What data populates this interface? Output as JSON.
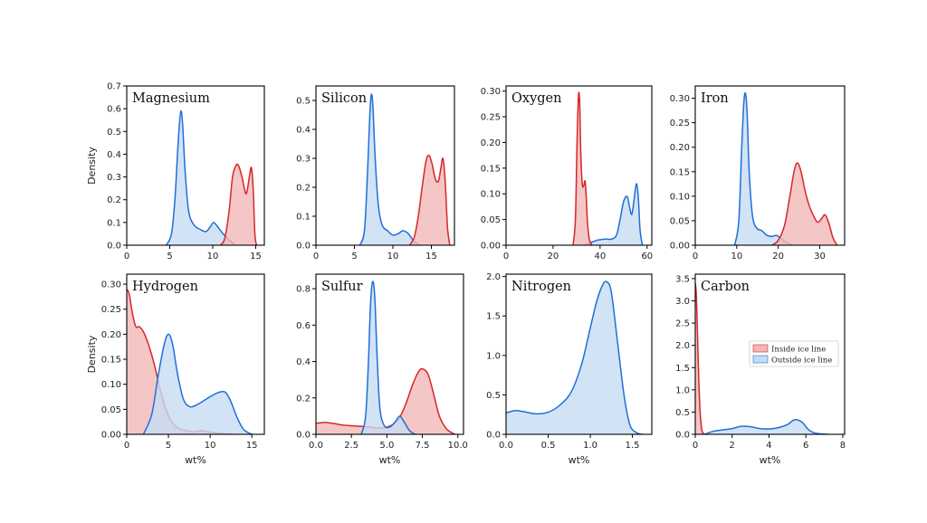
{
  "figure": {
    "legend": {
      "placement": "inside Carbon panel, center-right",
      "entries": [
        {
          "label": "Inside ice line",
          "color": "#d62728",
          "fill": "#f1b8b8"
        },
        {
          "label": "Outside ice line",
          "color": "#1f6fd6",
          "fill": "#c7dcf4"
        }
      ]
    },
    "colors": {
      "inside_line": "#d62728",
      "inside_fill": "#f1b8b8",
      "outside_line": "#1f6fd6",
      "outside_fill": "#c7dcf4",
      "axes": "#000000"
    }
  },
  "chart_data": [
    {
      "type": "area",
      "title": "Magnesium",
      "xlabel": "",
      "ylabel": "Density",
      "xlim": [
        0,
        16
      ],
      "ylim": [
        0,
        0.7
      ],
      "xticks": [
        0,
        5,
        10,
        15
      ],
      "xtick_labels": [
        "0",
        "5",
        "10",
        "15"
      ],
      "yticks": [
        0,
        0.1,
        0.2,
        0.3,
        0.4,
        0.5,
        0.6,
        0.7
      ],
      "ytick_labels": [
        "0.0",
        "0.1",
        "0.2",
        "0.3",
        "0.4",
        "0.5",
        "0.6",
        "0.7"
      ],
      "series": [
        {
          "name": "Outside ice line",
          "x": [
            4.6,
            5.2,
            5.6,
            5.9,
            6.1,
            6.3,
            6.5,
            6.8,
            7.2,
            7.8,
            8.5,
            9.2,
            9.7,
            10.1,
            10.6,
            11.2,
            12.0,
            12.6
          ],
          "y": [
            0.0,
            0.05,
            0.2,
            0.4,
            0.52,
            0.59,
            0.53,
            0.32,
            0.15,
            0.09,
            0.07,
            0.06,
            0.08,
            0.1,
            0.08,
            0.05,
            0.02,
            0.0
          ]
        },
        {
          "name": "Inside ice line",
          "x": [
            10.9,
            11.4,
            11.9,
            12.3,
            12.7,
            13.0,
            13.4,
            13.8,
            14.0,
            14.3,
            14.5,
            14.7,
            14.9,
            15.1
          ],
          "y": [
            0.0,
            0.03,
            0.15,
            0.3,
            0.35,
            0.35,
            0.3,
            0.23,
            0.24,
            0.31,
            0.34,
            0.25,
            0.05,
            0.0
          ]
        }
      ]
    },
    {
      "type": "area",
      "title": "Silicon",
      "xlabel": "",
      "ylabel": "",
      "xlim": [
        0,
        18
      ],
      "ylim": [
        0,
        0.55
      ],
      "xticks": [
        0,
        5,
        10,
        15
      ],
      "xtick_labels": [
        "0",
        "5",
        "10",
        "15"
      ],
      "yticks": [
        0,
        0.1,
        0.2,
        0.3,
        0.4,
        0.5
      ],
      "ytick_labels": [
        "0.0",
        "0.1",
        "0.2",
        "0.3",
        "0.4",
        "0.5"
      ],
      "series": [
        {
          "name": "Outside ice line",
          "x": [
            5.7,
            6.3,
            6.7,
            7.0,
            7.2,
            7.4,
            7.7,
            8.1,
            8.6,
            9.3,
            10.0,
            10.7,
            11.3,
            12.0,
            12.7,
            13.5
          ],
          "y": [
            0.0,
            0.05,
            0.25,
            0.45,
            0.52,
            0.48,
            0.3,
            0.14,
            0.07,
            0.05,
            0.035,
            0.04,
            0.05,
            0.04,
            0.015,
            0.0
          ]
        },
        {
          "name": "Inside ice line",
          "x": [
            12.2,
            12.8,
            13.3,
            13.8,
            14.3,
            14.7,
            15.1,
            15.5,
            15.9,
            16.2,
            16.5,
            16.8,
            17.1,
            17.4
          ],
          "y": [
            0.0,
            0.03,
            0.1,
            0.2,
            0.29,
            0.31,
            0.28,
            0.23,
            0.22,
            0.26,
            0.3,
            0.22,
            0.06,
            0.0
          ]
        }
      ]
    },
    {
      "type": "area",
      "title": "Oxygen",
      "xlabel": "",
      "ylabel": "",
      "xlim": [
        0,
        62
      ],
      "ylim": [
        0,
        0.31
      ],
      "xticks": [
        0,
        20,
        40,
        60
      ],
      "xtick_labels": [
        "0",
        "20",
        "40",
        "60"
      ],
      "yticks": [
        0,
        0.05,
        0.1,
        0.15,
        0.2,
        0.25,
        0.3
      ],
      "ytick_labels": [
        "0.00",
        "0.05",
        "0.10",
        "0.15",
        "0.20",
        "0.25",
        "0.30"
      ],
      "series": [
        {
          "name": "Outside ice line",
          "x": [
            33,
            36,
            39,
            42,
            45,
            47,
            48.5,
            50,
            51.5,
            52.5,
            53.5,
            54.5,
            55.5,
            56.3,
            57,
            58
          ],
          "y": [
            0.0,
            0.005,
            0.01,
            0.012,
            0.012,
            0.02,
            0.05,
            0.085,
            0.095,
            0.075,
            0.06,
            0.09,
            0.12,
            0.09,
            0.03,
            0.0
          ]
        },
        {
          "name": "Inside ice line",
          "x": [
            28.5,
            29.5,
            30.2,
            30.8,
            31.3,
            31.8,
            32.4,
            33.0,
            33.6,
            34.1,
            34.7,
            35.5,
            36.5
          ],
          "y": [
            0.0,
            0.05,
            0.2,
            0.29,
            0.28,
            0.18,
            0.12,
            0.115,
            0.125,
            0.095,
            0.04,
            0.01,
            0.0
          ]
        }
      ]
    },
    {
      "type": "area",
      "title": "Iron",
      "xlabel": "",
      "ylabel": "",
      "xlim": [
        0,
        36
      ],
      "ylim": [
        0,
        0.325
      ],
      "xticks": [
        0,
        10,
        20,
        30
      ],
      "xtick_labels": [
        "0",
        "10",
        "20",
        "30"
      ],
      "yticks": [
        0,
        0.05,
        0.1,
        0.15,
        0.2,
        0.25,
        0.3
      ],
      "ytick_labels": [
        "0.00",
        "0.05",
        "0.10",
        "0.15",
        "0.20",
        "0.25",
        "0.30"
      ],
      "series": [
        {
          "name": "Outside ice line",
          "x": [
            9.5,
            10.5,
            11.2,
            11.7,
            12.1,
            12.5,
            13.0,
            13.8,
            14.8,
            16.0,
            17.3,
            18.5,
            19.5,
            20.5,
            21.5,
            22.5,
            23.5
          ],
          "y": [
            0.0,
            0.05,
            0.2,
            0.29,
            0.31,
            0.27,
            0.15,
            0.06,
            0.035,
            0.03,
            0.02,
            0.018,
            0.02,
            0.015,
            0.008,
            0.003,
            0.0
          ]
        },
        {
          "name": "Inside ice line",
          "x": [
            18.5,
            20,
            21.5,
            22.8,
            23.8,
            24.6,
            25.5,
            26.5,
            27.5,
            28.5,
            29.5,
            30.5,
            31.3,
            32.2,
            33.2,
            34.2
          ],
          "y": [
            0.0,
            0.01,
            0.04,
            0.1,
            0.15,
            0.168,
            0.15,
            0.11,
            0.08,
            0.06,
            0.047,
            0.055,
            0.062,
            0.045,
            0.015,
            0.0
          ]
        }
      ]
    },
    {
      "type": "area",
      "title": "Hydrogen",
      "xlabel": "wt%",
      "ylabel": "Density",
      "xlim": [
        0,
        16.5
      ],
      "ylim": [
        0,
        0.32
      ],
      "xticks": [
        0,
        5,
        10,
        15
      ],
      "xtick_labels": [
        "0",
        "5",
        "10",
        "15"
      ],
      "yticks": [
        0,
        0.05,
        0.1,
        0.15,
        0.2,
        0.25,
        0.3
      ],
      "ytick_labels": [
        "0.00",
        "0.05",
        "0.10",
        "0.15",
        "0.20",
        "0.25",
        "0.30"
      ],
      "series": [
        {
          "name": "Inside ice line",
          "x": [
            0.0,
            0.3,
            0.7,
            1.1,
            1.5,
            2.0,
            2.6,
            3.3,
            4.0,
            4.7,
            5.4,
            6.2,
            7.0,
            8.0,
            9.0,
            10.0,
            11.0,
            12.0,
            13.0
          ],
          "y": [
            0.29,
            0.28,
            0.24,
            0.215,
            0.215,
            0.205,
            0.18,
            0.14,
            0.09,
            0.05,
            0.025,
            0.012,
            0.008,
            0.005,
            0.007,
            0.004,
            0.002,
            0.001,
            0.0
          ]
        },
        {
          "name": "Outside ice line",
          "x": [
            2.0,
            3.0,
            3.8,
            4.5,
            5.0,
            5.5,
            6.1,
            6.8,
            7.6,
            8.5,
            9.5,
            10.5,
            11.3,
            11.9,
            12.5,
            13.2,
            14.0,
            15.0
          ],
          "y": [
            0.0,
            0.04,
            0.12,
            0.18,
            0.2,
            0.18,
            0.12,
            0.07,
            0.055,
            0.06,
            0.07,
            0.08,
            0.085,
            0.083,
            0.065,
            0.035,
            0.01,
            0.0
          ]
        }
      ]
    },
    {
      "type": "area",
      "title": "Sulfur",
      "xlabel": "wt%",
      "ylabel": "",
      "xlim": [
        0,
        10.4
      ],
      "ylim": [
        0,
        0.88
      ],
      "xticks": [
        0,
        2.5,
        5,
        7.5,
        10
      ],
      "xtick_labels": [
        "0.0",
        "2.5",
        "5.0",
        "7.5",
        "10.0"
      ],
      "yticks": [
        0,
        0.2,
        0.4,
        0.6,
        0.8
      ],
      "ytick_labels": [
        "0.0",
        "0.2",
        "0.4",
        "0.6",
        "0.8"
      ],
      "series": [
        {
          "name": "Inside ice line",
          "x": [
            0.0,
            0.6,
            1.2,
            2.0,
            3.0,
            3.8,
            4.5,
            5.2,
            5.8,
            6.3,
            6.8,
            7.2,
            7.5,
            7.9,
            8.3,
            8.7,
            9.2,
            9.8
          ],
          "y": [
            0.06,
            0.065,
            0.06,
            0.05,
            0.045,
            0.04,
            0.035,
            0.045,
            0.08,
            0.16,
            0.27,
            0.34,
            0.36,
            0.33,
            0.22,
            0.1,
            0.03,
            0.0
          ]
        },
        {
          "name": "Outside ice line",
          "x": [
            3.2,
            3.5,
            3.7,
            3.85,
            4.0,
            4.15,
            4.3,
            4.5,
            4.8,
            5.2,
            5.6,
            5.9,
            6.2,
            6.6,
            7.0
          ],
          "y": [
            0.0,
            0.1,
            0.4,
            0.72,
            0.84,
            0.75,
            0.45,
            0.15,
            0.05,
            0.04,
            0.07,
            0.1,
            0.07,
            0.02,
            0.0
          ]
        }
      ]
    },
    {
      "type": "area",
      "title": "Nitrogen",
      "xlabel": "wt%",
      "ylabel": "",
      "xlim": [
        0,
        1.73
      ],
      "ylim": [
        0,
        2.03
      ],
      "xticks": [
        0,
        0.5,
        1,
        1.5
      ],
      "xtick_labels": [
        "0.0",
        "0.5",
        "1.0",
        "1.5"
      ],
      "yticks": [
        0,
        0.5,
        1,
        1.5,
        2
      ],
      "ytick_labels": [
        "0.0",
        "0.5",
        "1.0",
        "1.5",
        "2.0"
      ],
      "series": [
        {
          "name": "Outside ice line",
          "x": [
            0.0,
            0.1,
            0.2,
            0.35,
            0.5,
            0.65,
            0.78,
            0.9,
            1.0,
            1.08,
            1.15,
            1.2,
            1.25,
            1.32,
            1.4,
            1.47,
            1.55,
            1.62
          ],
          "y": [
            0.27,
            0.3,
            0.29,
            0.26,
            0.28,
            0.38,
            0.55,
            0.9,
            1.35,
            1.7,
            1.9,
            1.93,
            1.8,
            1.2,
            0.5,
            0.12,
            0.02,
            0.0
          ]
        }
      ]
    },
    {
      "type": "area",
      "title": "Carbon",
      "xlabel": "wt%",
      "ylabel": "",
      "xlim": [
        0,
        8.1
      ],
      "ylim": [
        0,
        3.6
      ],
      "xticks": [
        0,
        2,
        4,
        6,
        8
      ],
      "xtick_labels": [
        "0",
        "2",
        "4",
        "6",
        "8"
      ],
      "yticks": [
        0,
        0.5,
        1,
        1.5,
        2,
        2.5,
        3,
        3.5
      ],
      "ytick_labels": [
        "0.0",
        "0.5",
        "1.0",
        "1.5",
        "2.0",
        "2.5",
        "3.0",
        "3.5"
      ],
      "series": [
        {
          "name": "Inside ice line",
          "x": [
            0.0,
            0.05,
            0.1,
            0.15,
            0.2,
            0.25,
            0.3,
            0.35,
            0.4,
            0.5
          ],
          "y": [
            3.4,
            3.2,
            2.6,
            1.8,
            1.1,
            0.6,
            0.3,
            0.12,
            0.04,
            0.0
          ]
        },
        {
          "name": "Outside ice line",
          "x": [
            0.5,
            1.0,
            1.5,
            2.0,
            2.5,
            3.0,
            3.5,
            4.0,
            4.5,
            5.0,
            5.4,
            5.8,
            6.1,
            6.4,
            6.8,
            7.2
          ],
          "y": [
            0.0,
            0.07,
            0.1,
            0.13,
            0.18,
            0.17,
            0.13,
            0.12,
            0.15,
            0.22,
            0.33,
            0.27,
            0.12,
            0.04,
            0.01,
            0.0
          ]
        }
      ]
    }
  ]
}
